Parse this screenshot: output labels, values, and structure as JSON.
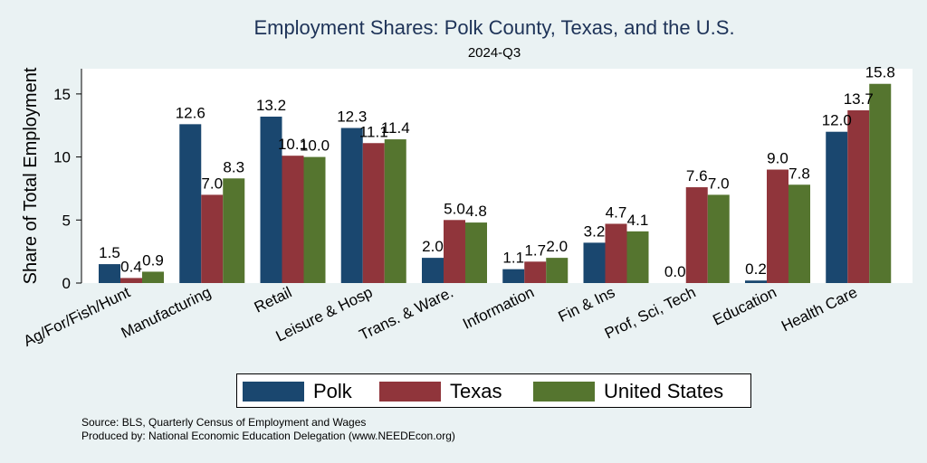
{
  "chart_data": {
    "type": "bar",
    "title": "Employment Shares: Polk County, Texas, and the U.S.",
    "subtitle": "2024-Q3",
    "ylabel": "Share of Total Employment",
    "xlabel": "",
    "ylim": [
      0,
      17
    ],
    "yticks": [
      0,
      5,
      10,
      15
    ],
    "categories": [
      "Ag/For/Fish/Hunt",
      "Manufacturing",
      "Retail",
      "Leisure & Hosp",
      "Trans. & Ware.",
      "Information",
      "Fin & Ins",
      "Prof, Sci, Tech",
      "Education",
      "Health Care"
    ],
    "series": [
      {
        "name": "Polk",
        "color": "#1a476f",
        "values": [
          1.5,
          12.6,
          13.2,
          12.3,
          2.0,
          1.1,
          3.2,
          0.0,
          0.2,
          12.0
        ]
      },
      {
        "name": "Texas",
        "color": "#90353b",
        "values": [
          0.4,
          7.0,
          10.1,
          11.1,
          5.0,
          1.7,
          4.7,
          7.6,
          9.0,
          13.7
        ]
      },
      {
        "name": "United States",
        "color": "#55752f",
        "values": [
          0.9,
          8.3,
          10.0,
          11.4,
          4.8,
          2.0,
          4.1,
          7.0,
          7.8,
          15.8
        ]
      }
    ],
    "legend_position": "bottom",
    "grid": false
  },
  "footer": {
    "source": "Source: BLS, Quarterly Census of Employment and Wages",
    "produced": "Produced by: National Economic Education Delegation (www.NEEDEcon.org)"
  }
}
